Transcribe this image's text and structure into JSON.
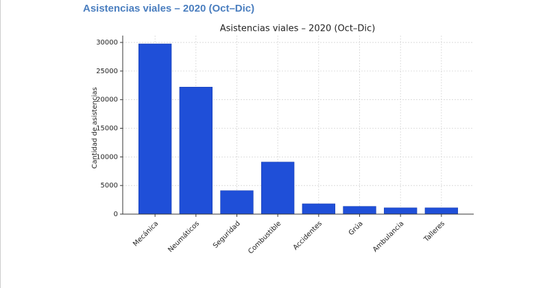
{
  "page_title": "Asistencias viales – 2020 (Oct–Dic)",
  "chart_data": {
    "type": "bar",
    "title": "Asistencias viales – 2020 (Oct–Dic)",
    "y_label": "Cantidad de asistencias",
    "categories": [
      "Mecánica",
      "Neumáticos",
      "Seguridad",
      "Combustible",
      "Accidentes",
      "Grúa",
      "Ambulancia",
      "Talleres"
    ],
    "values": [
      29750,
      22200,
      4100,
      9100,
      1800,
      1350,
      1100,
      1100
    ],
    "color": "#1f4fd8",
    "ylim": [
      0,
      31200
    ],
    "yticks": [
      0,
      5000,
      10000,
      15000,
      20000,
      25000,
      30000
    ],
    "grid": true
  }
}
